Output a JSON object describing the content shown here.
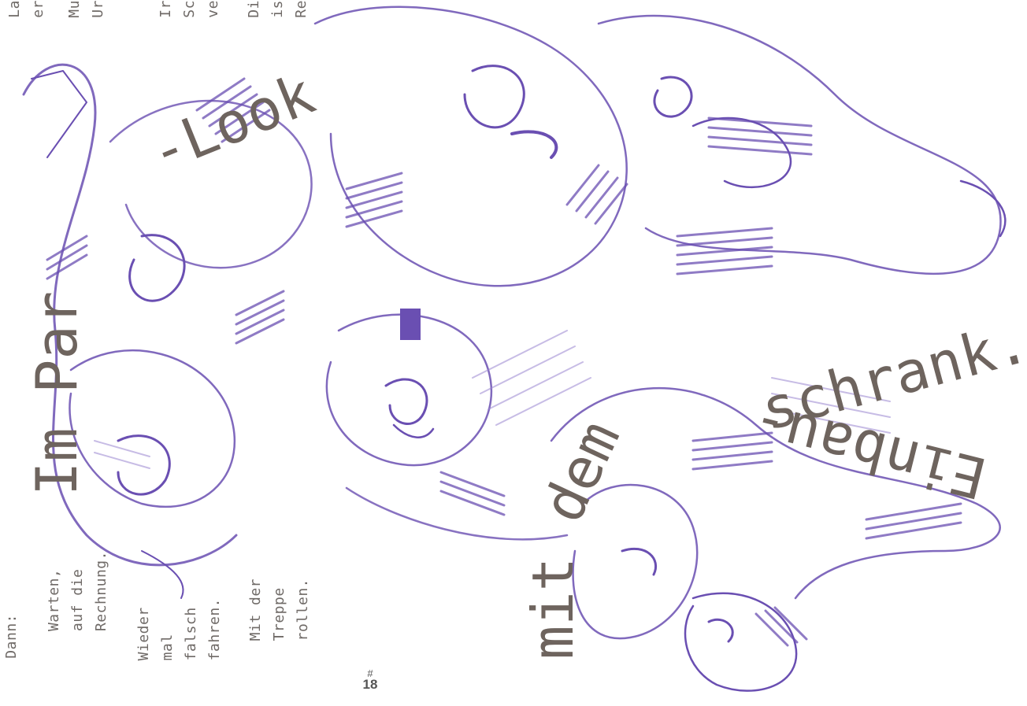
{
  "colors": {
    "ink": "#6a4fb2",
    "ink_light": "#9a86d0",
    "text": "#6e645e"
  },
  "headline": {
    "upper_word": "-Look",
    "lower_mit": "mit",
    "lower_dem": "dem",
    "schrank": "schrank.",
    "einbau": "Einbau-",
    "left_fragment": "Im Par"
  },
  "columns_bottom": [
    "Dann:",
    "Warten,\nauf die\nRechnung.",
    "Wieder\nmal\nfalsch\nfahren.",
    "Mit der\nTreppe\nrollen."
  ],
  "columns_top": [
    "La\ner",
    "Mu\nUr",
    "Ir\nSc\nve",
    "Di\nis\nRe"
  ],
  "page_number": {
    "hash": "#",
    "number": "18"
  }
}
